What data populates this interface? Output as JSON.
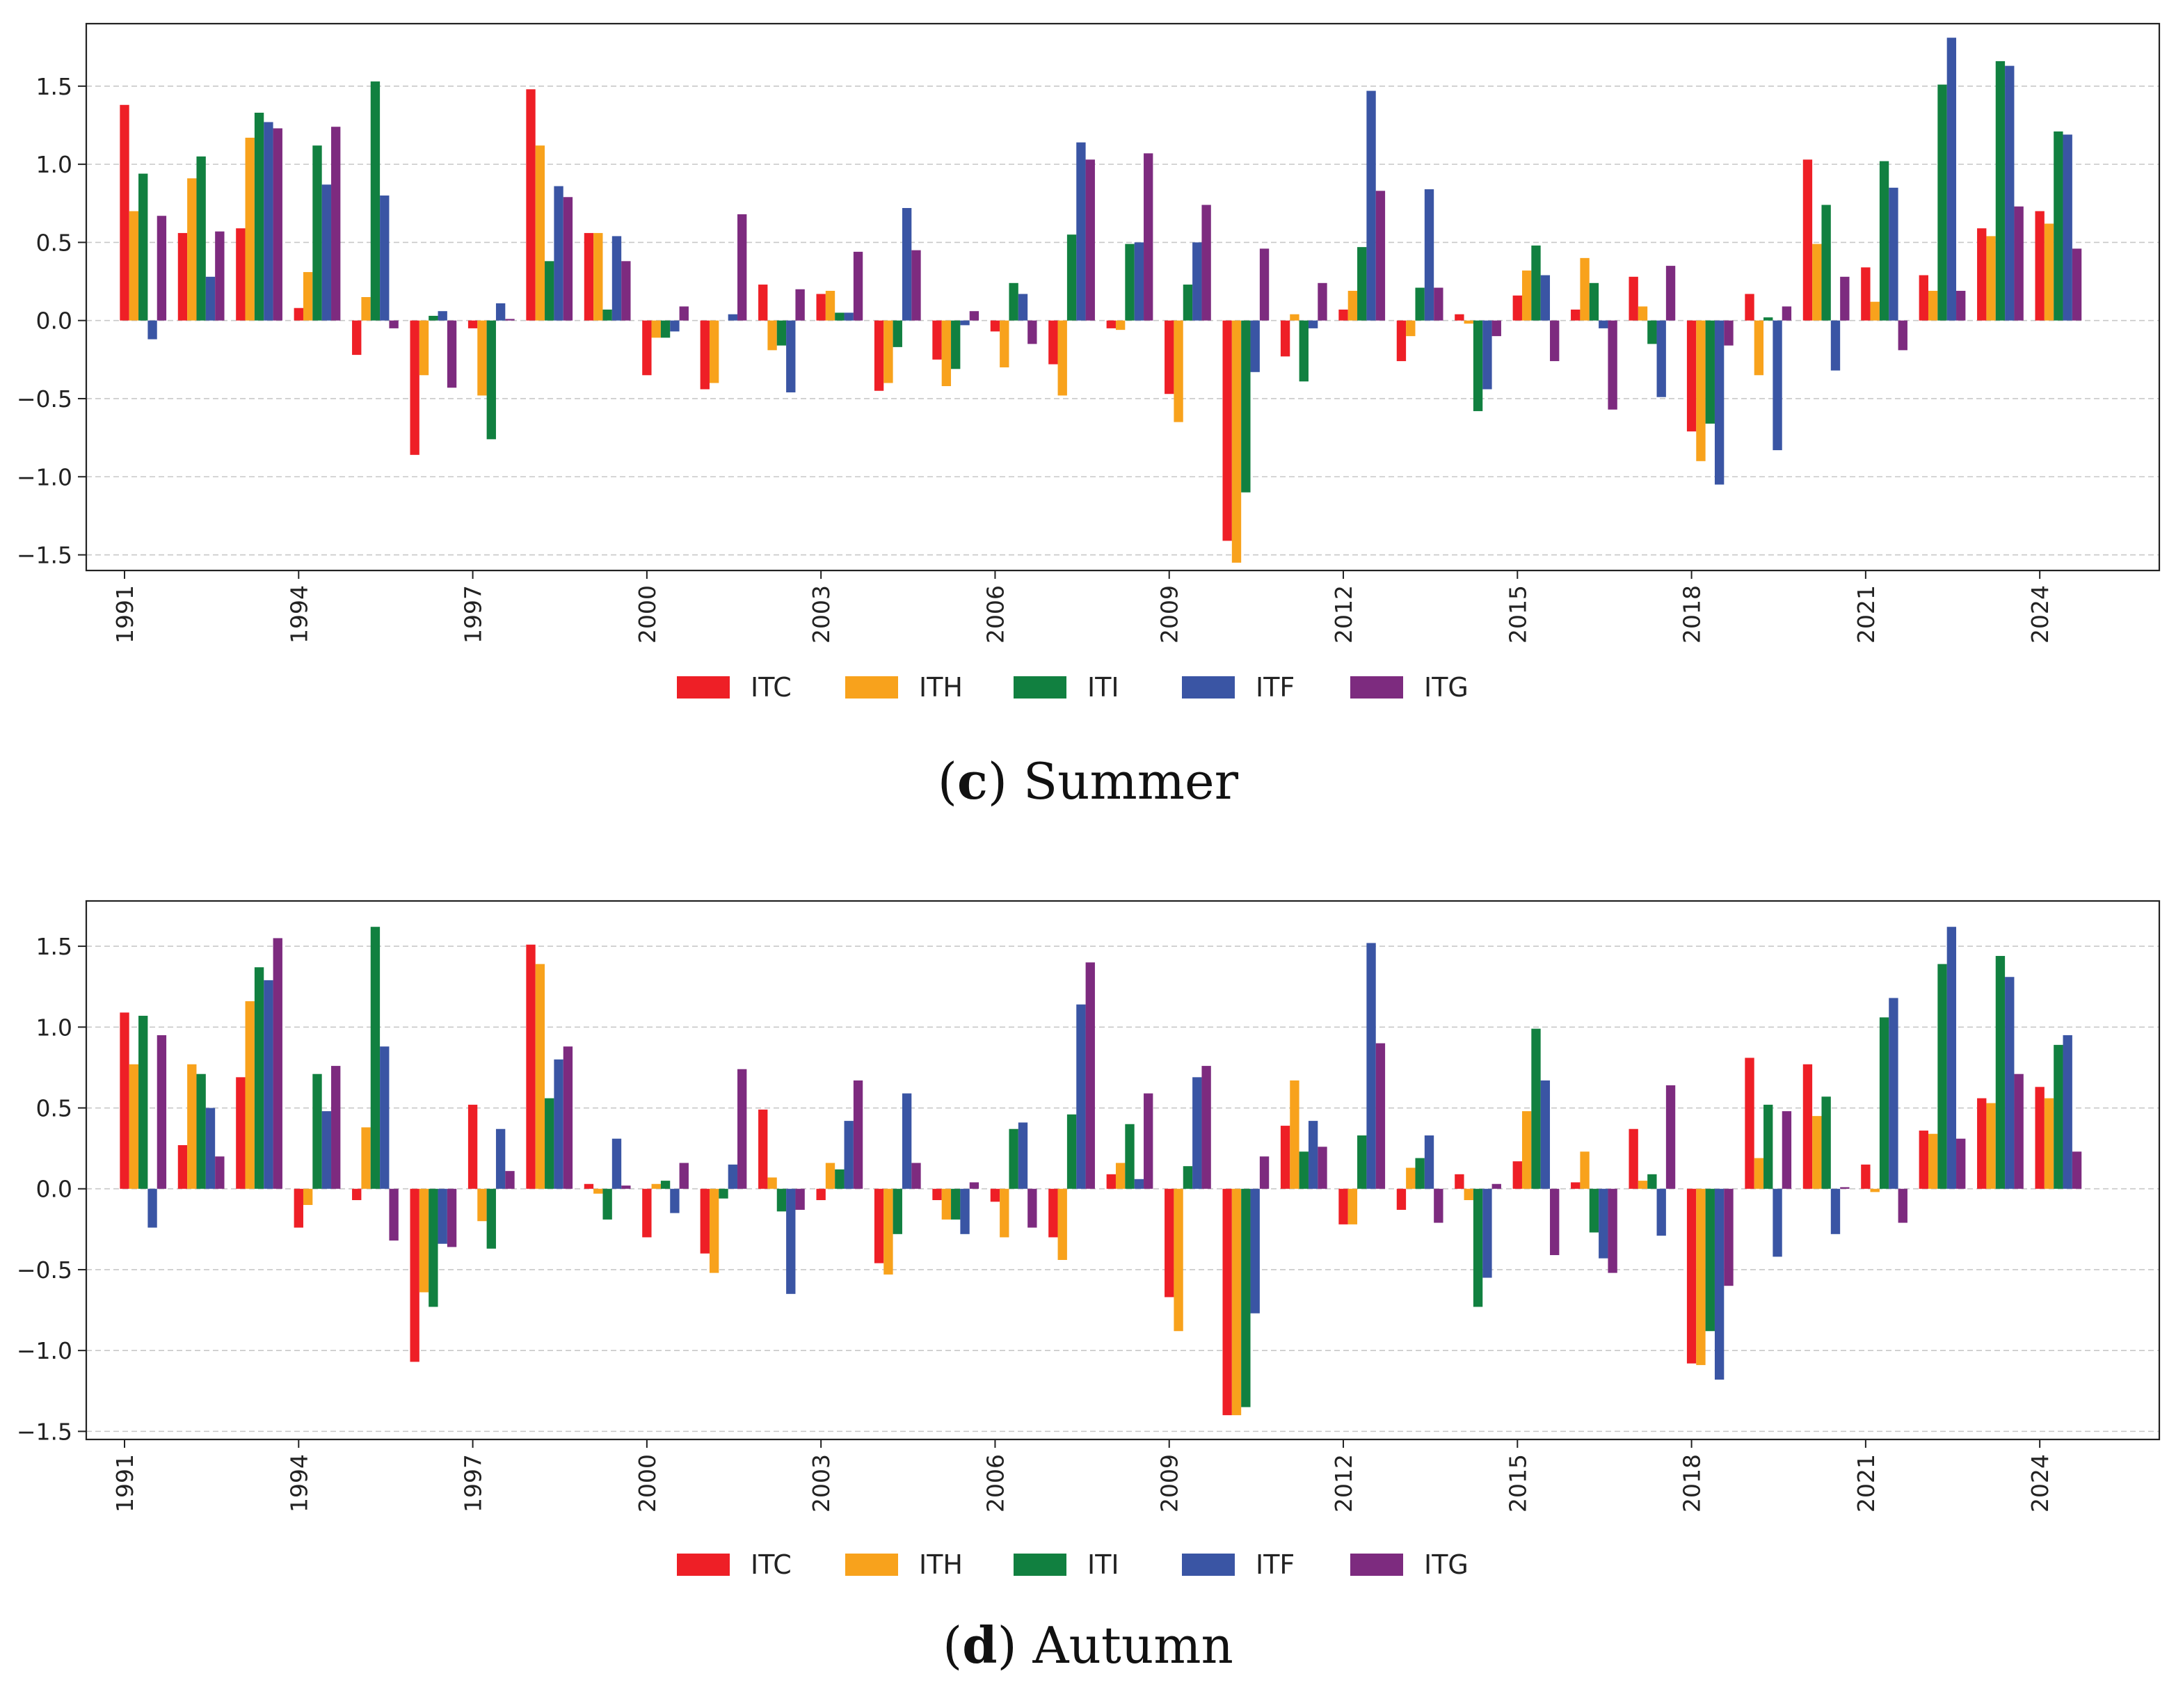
{
  "colors": {
    "ITC": "#ee1f26",
    "ITH": "#f8a21c",
    "ITI": "#118040",
    "ITF": "#3a55a4",
    "ITG": "#7d2b7f"
  },
  "chart_data": [
    {
      "type": "bar",
      "id": "summer",
      "caption_letter": "c",
      "caption_text": "Summer",
      "title": "",
      "xlabel": "",
      "ylabel": "",
      "ylim": [
        -1.6,
        1.9
      ],
      "yticks": [
        -1.5,
        -1.0,
        -0.5,
        0.0,
        0.5,
        1.0,
        1.5
      ],
      "ytick_labels": [
        "−1.5",
        "−1.0",
        "−0.5",
        "0.0",
        "0.5",
        "1.0",
        "1.5"
      ],
      "grid": true,
      "legend_position": "bottom-center",
      "categories": [
        "1991",
        "1992",
        "1993",
        "1994",
        "1995",
        "1996",
        "1997",
        "1998",
        "1999",
        "2000",
        "2001",
        "2002",
        "2003",
        "2004",
        "2005",
        "2006",
        "2007",
        "2008",
        "2009",
        "2010",
        "2011",
        "2012",
        "2013",
        "2014",
        "2015",
        "2016",
        "2017",
        "2018",
        "2019",
        "2020",
        "2021",
        "2022",
        "2023",
        "2024",
        "2025"
      ],
      "xtick_labels": [
        "1991",
        "1994",
        "1997",
        "2000",
        "2003",
        "2006",
        "2009",
        "2012",
        "2015",
        "2018",
        "2021",
        "2024"
      ],
      "xtick_step": 3,
      "series": [
        {
          "name": "ITC",
          "values": [
            1.38,
            0.56,
            0.59,
            0.08,
            -0.22,
            -0.86,
            -0.05,
            1.48,
            0.56,
            -0.35,
            -0.44,
            0.23,
            0.17,
            -0.45,
            -0.25,
            -0.07,
            -0.28,
            -0.05,
            -0.47,
            -1.41,
            -0.23,
            0.07,
            -0.26,
            0.04,
            0.16,
            0.07,
            0.28,
            -0.71,
            0.17,
            1.03,
            0.34,
            0.29,
            0.59,
            0.7,
            0.0
          ]
        },
        {
          "name": "ITH",
          "values": [
            0.7,
            0.91,
            1.17,
            0.31,
            0.15,
            -0.35,
            -0.48,
            1.12,
            0.56,
            -0.11,
            -0.4,
            -0.19,
            0.19,
            -0.4,
            -0.42,
            -0.3,
            -0.48,
            -0.06,
            -0.65,
            -1.55,
            0.04,
            0.19,
            -0.1,
            -0.02,
            0.32,
            0.4,
            0.09,
            -0.9,
            -0.35,
            0.49,
            0.12,
            0.19,
            0.54,
            0.62,
            0.0
          ]
        },
        {
          "name": "ITI",
          "values": [
            0.94,
            1.05,
            1.33,
            1.12,
            1.53,
            0.03,
            -0.76,
            0.38,
            0.07,
            -0.11,
            0.0,
            -0.16,
            0.05,
            -0.17,
            -0.31,
            0.24,
            0.55,
            0.49,
            0.23,
            -1.1,
            -0.39,
            0.47,
            0.21,
            -0.58,
            0.48,
            0.24,
            -0.15,
            -0.66,
            0.02,
            0.74,
            1.02,
            1.51,
            1.66,
            1.21,
            0.0
          ]
        },
        {
          "name": "ITF",
          "values": [
            -0.12,
            0.28,
            1.27,
            0.87,
            0.8,
            0.06,
            0.11,
            0.86,
            0.54,
            -0.07,
            0.04,
            -0.46,
            0.05,
            0.72,
            -0.03,
            0.17,
            1.14,
            0.5,
            0.5,
            -0.33,
            -0.05,
            1.47,
            0.84,
            -0.44,
            0.29,
            -0.05,
            -0.49,
            -1.05,
            -0.83,
            -0.32,
            0.85,
            1.81,
            1.63,
            1.19,
            0.0
          ]
        },
        {
          "name": "ITG",
          "values": [
            0.67,
            0.57,
            1.23,
            1.24,
            -0.05,
            -0.43,
            0.01,
            0.79,
            0.38,
            0.09,
            0.68,
            0.2,
            0.44,
            0.45,
            0.06,
            -0.15,
            1.03,
            1.07,
            0.74,
            0.46,
            0.24,
            0.83,
            0.21,
            -0.1,
            -0.26,
            -0.57,
            0.35,
            -0.16,
            0.09,
            0.28,
            -0.19,
            0.19,
            0.73,
            0.46,
            0.0
          ]
        }
      ]
    },
    {
      "type": "bar",
      "id": "autumn",
      "caption_letter": "d",
      "caption_text": "Autumn",
      "title": "",
      "xlabel": "",
      "ylabel": "",
      "ylim": [
        -1.55,
        1.78
      ],
      "yticks": [
        -1.5,
        -1.0,
        -0.5,
        0.0,
        0.5,
        1.0,
        1.5
      ],
      "ytick_labels": [
        "−1.5",
        "−1.0",
        "−0.5",
        "0.0",
        "0.5",
        "1.0",
        "1.5"
      ],
      "grid": true,
      "legend_position": "bottom-center",
      "categories": [
        "1991",
        "1992",
        "1993",
        "1994",
        "1995",
        "1996",
        "1997",
        "1998",
        "1999",
        "2000",
        "2001",
        "2002",
        "2003",
        "2004",
        "2005",
        "2006",
        "2007",
        "2008",
        "2009",
        "2010",
        "2011",
        "2012",
        "2013",
        "2014",
        "2015",
        "2016",
        "2017",
        "2018",
        "2019",
        "2020",
        "2021",
        "2022",
        "2023",
        "2024",
        "2025"
      ],
      "xtick_labels": [
        "1991",
        "1994",
        "1997",
        "2000",
        "2003",
        "2006",
        "2009",
        "2012",
        "2015",
        "2018",
        "2021",
        "2024"
      ],
      "xtick_step": 3,
      "series": [
        {
          "name": "ITC",
          "values": [
            1.09,
            0.27,
            0.69,
            -0.24,
            -0.07,
            -1.07,
            0.52,
            1.51,
            0.03,
            -0.3,
            -0.4,
            0.49,
            -0.07,
            -0.46,
            -0.07,
            -0.08,
            -0.3,
            0.09,
            -0.67,
            -1.4,
            0.39,
            -0.22,
            -0.13,
            0.09,
            0.17,
            0.04,
            0.37,
            -1.08,
            0.81,
            0.77,
            0.15,
            0.36,
            0.56,
            0.63,
            0.0
          ]
        },
        {
          "name": "ITH",
          "values": [
            0.77,
            0.77,
            1.16,
            -0.1,
            0.38,
            -0.64,
            -0.2,
            1.39,
            -0.03,
            0.03,
            -0.52,
            0.07,
            0.16,
            -0.53,
            -0.19,
            -0.3,
            -0.44,
            0.16,
            -0.88,
            -1.4,
            0.67,
            -0.22,
            0.13,
            -0.07,
            0.48,
            0.23,
            0.05,
            -1.09,
            0.19,
            0.45,
            -0.02,
            0.34,
            0.53,
            0.56,
            0.0
          ]
        },
        {
          "name": "ITI",
          "values": [
            1.07,
            0.71,
            1.37,
            0.71,
            1.62,
            -0.73,
            -0.37,
            0.56,
            -0.19,
            0.05,
            -0.06,
            -0.14,
            0.12,
            -0.28,
            -0.19,
            0.37,
            0.46,
            0.4,
            0.14,
            -1.35,
            0.23,
            0.33,
            0.19,
            -0.73,
            0.99,
            -0.27,
            0.09,
            -0.88,
            0.52,
            0.57,
            1.06,
            1.39,
            1.44,
            0.89,
            0.0
          ]
        },
        {
          "name": "ITF",
          "values": [
            -0.24,
            0.5,
            1.29,
            0.48,
            0.88,
            -0.34,
            0.37,
            0.8,
            0.31,
            -0.15,
            0.15,
            -0.65,
            0.42,
            0.59,
            -0.28,
            0.41,
            1.14,
            0.06,
            0.69,
            -0.77,
            0.42,
            1.52,
            0.33,
            -0.55,
            0.67,
            -0.43,
            -0.29,
            -1.18,
            -0.42,
            -0.28,
            1.18,
            1.62,
            1.31,
            0.95,
            0.0
          ]
        },
        {
          "name": "ITG",
          "values": [
            0.95,
            0.2,
            1.55,
            0.76,
            -0.32,
            -0.36,
            0.11,
            0.88,
            0.02,
            0.16,
            0.74,
            -0.13,
            0.67,
            0.16,
            0.04,
            -0.24,
            1.4,
            0.59,
            0.76,
            0.2,
            0.26,
            0.9,
            -0.21,
            0.03,
            -0.41,
            -0.52,
            0.64,
            -0.6,
            0.48,
            0.01,
            -0.21,
            0.31,
            0.71,
            0.23,
            0.0
          ]
        }
      ]
    }
  ]
}
